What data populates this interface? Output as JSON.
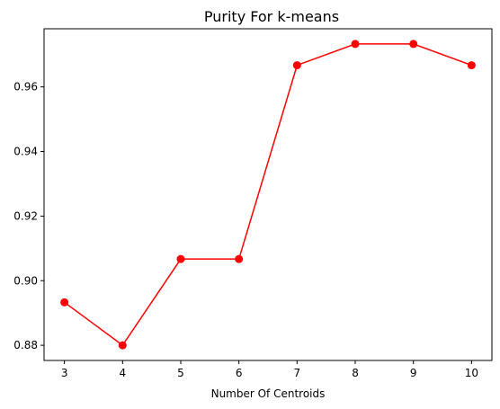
{
  "chart_data": {
    "type": "line",
    "title": "Purity For k-means",
    "xlabel": "Number Of Centroids",
    "ylabel": "",
    "x": [
      3,
      4,
      5,
      6,
      7,
      8,
      9,
      10
    ],
    "series": [
      {
        "values": [
          0.8933,
          0.88,
          0.9067,
          0.9067,
          0.9667,
          0.9733,
          0.9733,
          0.9667
        ],
        "color": "#ff0000",
        "marker": "circle"
      }
    ],
    "xlim": [
      2.65,
      10.35
    ],
    "ylim": [
      0.8753,
      0.978
    ],
    "xticks": [
      "3",
      "4",
      "5",
      "6",
      "7",
      "8",
      "9",
      "10"
    ],
    "yticks": [
      "0.88",
      "0.90",
      "0.92",
      "0.94",
      "0.96"
    ],
    "grid": false
  }
}
